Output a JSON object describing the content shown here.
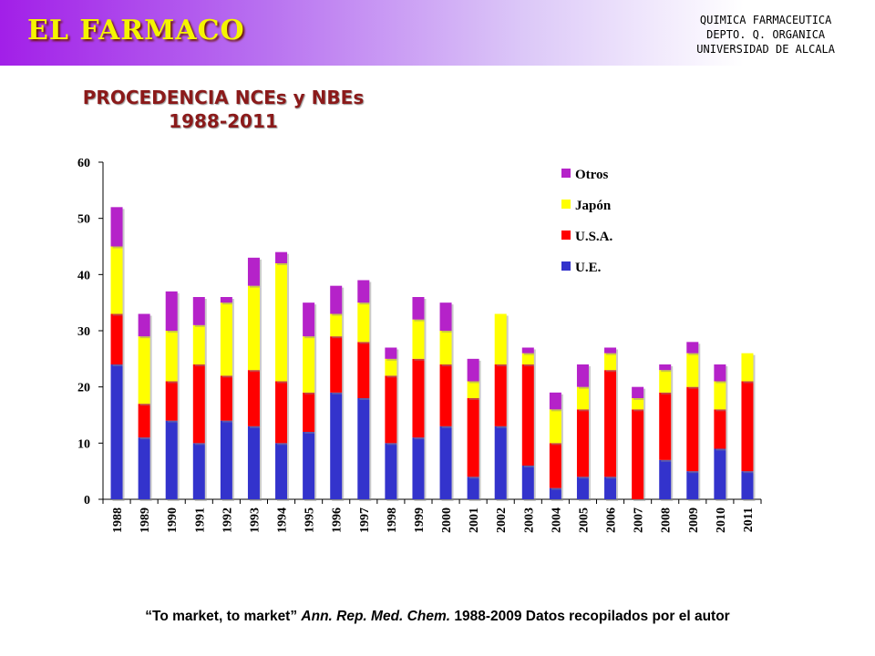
{
  "header": {
    "title": "EL FARMACO",
    "institution": [
      "QUIMICA FARMACEUTICA",
      "DEPTO. Q. ORGANICA",
      "UNIVERSIDAD DE ALCALA"
    ]
  },
  "chart_data": {
    "type": "bar",
    "stacked": true,
    "title": [
      "PROCEDENCIA NCEs y NBEs",
      "1988-2011"
    ],
    "xlabel": "",
    "ylabel": "",
    "ylim": [
      0,
      60
    ],
    "yticks": [
      0,
      10,
      20,
      30,
      40,
      50,
      60
    ],
    "grid": false,
    "legend_position": "top-right",
    "categories": [
      "1988",
      "1989",
      "1990",
      "1991",
      "1992",
      "1993",
      "1994",
      "1995",
      "1996",
      "1997",
      "1998",
      "1999",
      "2000",
      "2001",
      "2002",
      "2003",
      "2004",
      "2005",
      "2006",
      "2007",
      "2008",
      "2009",
      "2010",
      "2011"
    ],
    "series": [
      {
        "name": "U.E.",
        "color": "#3333cc",
        "values": [
          24,
          11,
          14,
          10,
          14,
          13,
          10,
          12,
          19,
          18,
          10,
          11,
          13,
          4,
          13,
          6,
          2,
          4,
          4,
          0,
          7,
          5,
          9,
          5
        ]
      },
      {
        "name": "U.S.A.",
        "color": "#ff0000",
        "values": [
          9,
          6,
          7,
          14,
          8,
          10,
          11,
          7,
          10,
          10,
          12,
          14,
          11,
          14,
          11,
          18,
          8,
          12,
          19,
          16,
          12,
          15,
          7,
          16
        ]
      },
      {
        "name": "Japón",
        "color": "#ffff00",
        "values": [
          12,
          12,
          9,
          7,
          13,
          15,
          21,
          10,
          4,
          7,
          3,
          7,
          6,
          3,
          9,
          2,
          6,
          4,
          3,
          2,
          4,
          6,
          5,
          5
        ]
      },
      {
        "name": "Otros",
        "color": "#b522c9",
        "values": [
          7,
          4,
          7,
          5,
          1,
          5,
          2,
          6,
          5,
          4,
          2,
          4,
          5,
          4,
          0,
          1,
          3,
          4,
          1,
          2,
          1,
          2,
          3,
          0
        ]
      }
    ]
  },
  "citation": {
    "part1": "“To market, to market” ",
    "part2": "Ann. Rep. Med. Chem.",
    "part3": " 1988-2009 Datos recopilados por el autor"
  }
}
